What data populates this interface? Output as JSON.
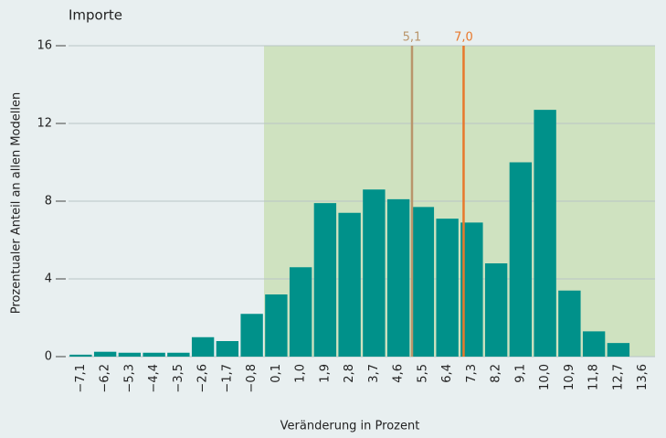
{
  "chart_data": {
    "type": "bar",
    "title": "Importe",
    "y_label": "Prozentualer Anteil an allen Modellen",
    "x_label": "Veränderung in Prozent",
    "x": [
      -7.1,
      -6.2,
      -5.3,
      -4.4,
      -3.5,
      -2.6,
      -1.7,
      -0.8,
      0.1,
      1.0,
      1.9,
      2.8,
      3.7,
      4.6,
      5.5,
      6.4,
      7.3,
      8.2,
      9.1,
      10.0,
      10.9,
      11.8,
      12.7,
      13.6
    ],
    "values": [
      0.1,
      0.25,
      0.2,
      0.2,
      0.2,
      1.0,
      0.8,
      2.2,
      3.2,
      4.6,
      7.9,
      7.4,
      8.6,
      8.1,
      7.7,
      7.1,
      6.9,
      4.8,
      10.0,
      12.7,
      3.4,
      1.3,
      0.7,
      null
    ],
    "color": "#00918a",
    "xlim": [
      -7.55,
      14.05
    ],
    "xticks": [
      {
        "value": -7.1,
        "label": "−7,1"
      },
      {
        "value": -6.2,
        "label": "−6,2"
      },
      {
        "value": -5.3,
        "label": "−5,3"
      },
      {
        "value": -4.4,
        "label": "−4,4"
      },
      {
        "value": -3.5,
        "label": "−3,5"
      },
      {
        "value": -2.6,
        "label": "−2,6"
      },
      {
        "value": -1.7,
        "label": "−1,7"
      },
      {
        "value": -0.8,
        "label": "−0,8"
      },
      {
        "value": 0.1,
        "label": "0,1"
      },
      {
        "value": 1.0,
        "label": "1,0"
      },
      {
        "value": 1.9,
        "label": "1,9"
      },
      {
        "value": 2.8,
        "label": "2,8"
      },
      {
        "value": 3.7,
        "label": "3,7"
      },
      {
        "value": 4.6,
        "label": "4,6"
      },
      {
        "value": 5.5,
        "label": "5,5"
      },
      {
        "value": 6.4,
        "label": "6,4"
      },
      {
        "value": 7.3,
        "label": "7,3"
      },
      {
        "value": 8.2,
        "label": "8,2"
      },
      {
        "value": 9.1,
        "label": "9,1"
      },
      {
        "value": 10.0,
        "label": "10,0"
      },
      {
        "value": 10.9,
        "label": "10,9"
      },
      {
        "value": 11.8,
        "label": "11,8"
      },
      {
        "value": 12.7,
        "label": "12,7"
      },
      {
        "value": 13.6,
        "label": "13,6"
      }
    ],
    "ylim": [
      0,
      16
    ],
    "yticks": [
      0,
      4,
      8,
      12,
      16
    ],
    "grid": true,
    "shaded_region": {
      "xmin": -0.35,
      "color": "#cfe2c0"
    },
    "reference_lines": [
      {
        "value": 5.1,
        "label": "5,1",
        "color": "#b9956b"
      },
      {
        "value": 7.0,
        "label": "7,0",
        "color": "#e8782c"
      }
    ]
  }
}
